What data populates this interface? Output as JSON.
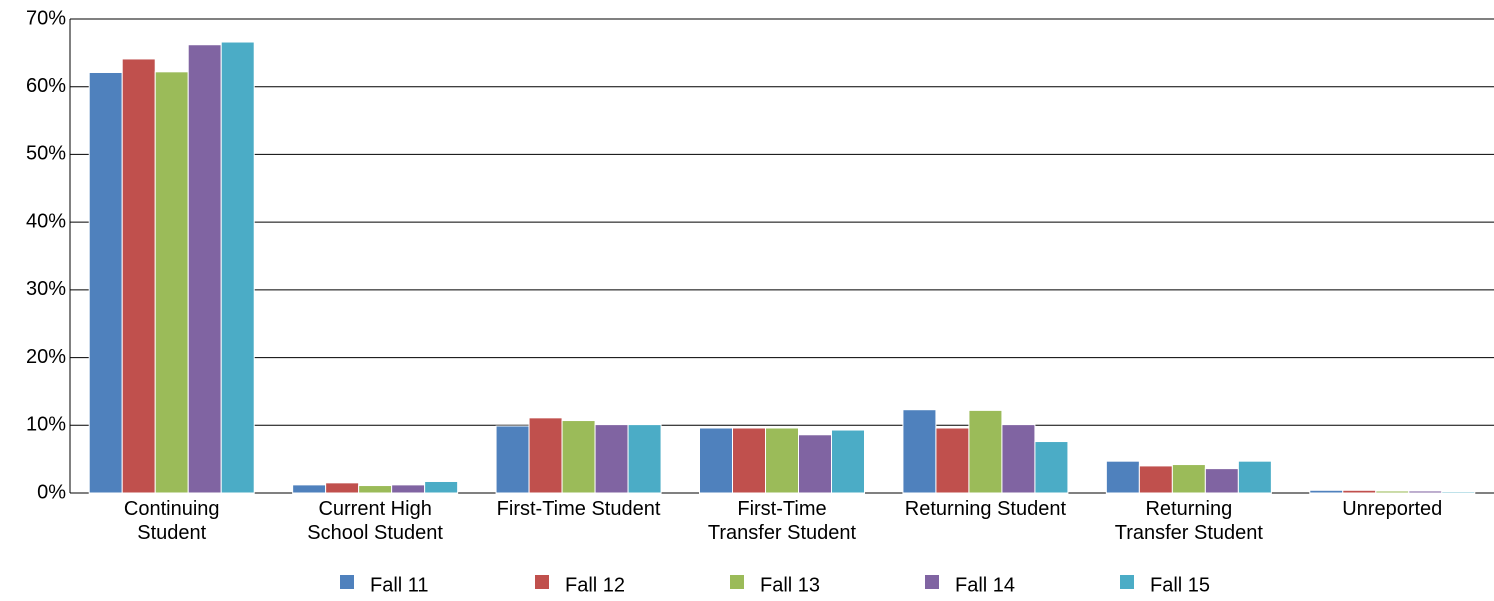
{
  "chart_data": {
    "type": "bar",
    "categories": [
      "Continuing\nStudent",
      "Current High\nSchool Student",
      "First-Time Student",
      "First-Time\nTransfer Student",
      "Returning Student",
      "Returning\nTransfer Student",
      "Unreported"
    ],
    "series": [
      {
        "name": "Fall 11",
        "color": "#4f81bd",
        "values": [
          62.1,
          1.2,
          9.9,
          9.6,
          12.3,
          4.7,
          0.4
        ]
      },
      {
        "name": "Fall 12",
        "color": "#c0504d",
        "values": [
          64.1,
          1.5,
          11.1,
          9.6,
          9.6,
          4.0,
          0.4
        ]
      },
      {
        "name": "Fall 13",
        "color": "#9bbb59",
        "values": [
          62.2,
          1.1,
          10.7,
          9.6,
          12.2,
          4.2,
          0.3
        ]
      },
      {
        "name": "Fall 14",
        "color": "#8064a2",
        "values": [
          66.2,
          1.2,
          10.1,
          8.6,
          10.1,
          3.6,
          0.3
        ]
      },
      {
        "name": "Fall 15",
        "color": "#4bacc6",
        "values": [
          66.6,
          1.7,
          10.1,
          9.3,
          7.6,
          4.7,
          0.2
        ]
      }
    ],
    "ylim": [
      0,
      70
    ],
    "yticks": [
      {
        "value": 0,
        "label": "0%"
      },
      {
        "value": 10,
        "label": "10%"
      },
      {
        "value": 20,
        "label": "20%"
      },
      {
        "value": 30,
        "label": "30%"
      },
      {
        "value": 40,
        "label": "40%"
      },
      {
        "value": 50,
        "label": "50%"
      },
      {
        "value": 60,
        "label": "60%"
      },
      {
        "value": 70,
        "label": "70%"
      }
    ],
    "grid": true,
    "legend": "bottom"
  }
}
